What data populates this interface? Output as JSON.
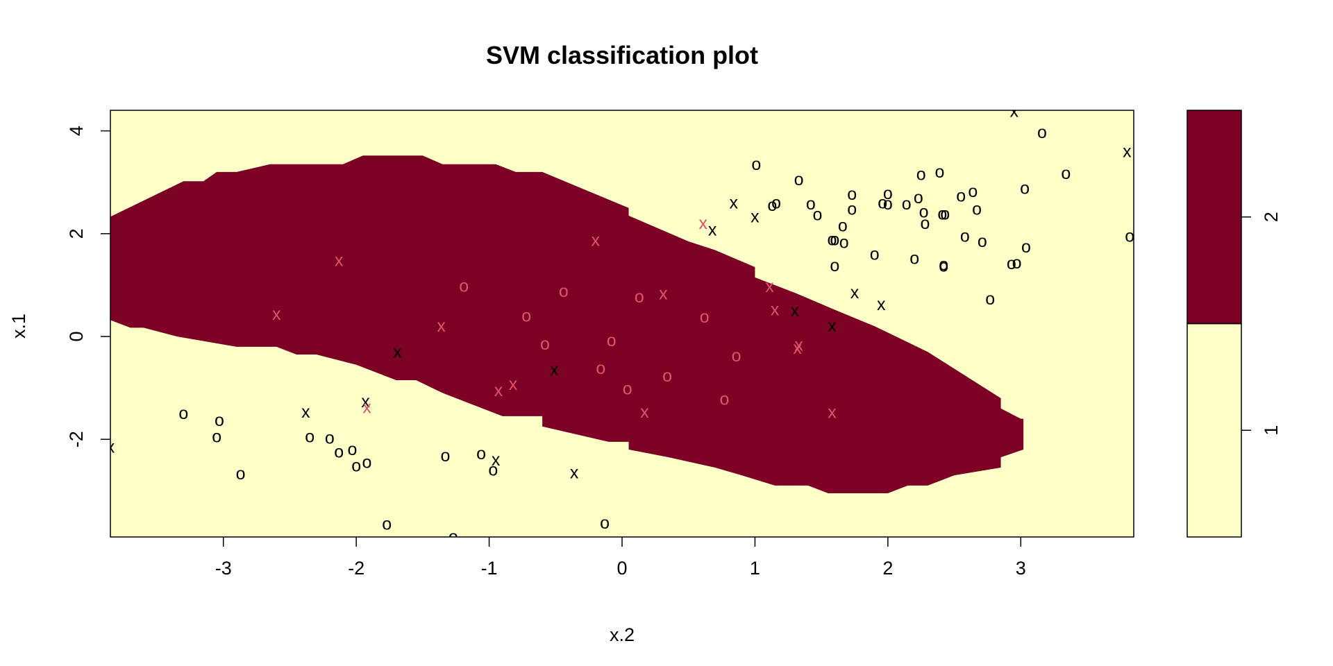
{
  "chart_data": {
    "type": "scatter",
    "title": "SVM classification plot",
    "xlabel": "x.2",
    "ylabel": "x.1",
    "xlim": [
      -3.85,
      3.85
    ],
    "ylim": [
      -3.9,
      4.4
    ],
    "xticks": [
      -3,
      -2,
      -1,
      0,
      1,
      2,
      3
    ],
    "xtick_labels": [
      "-3",
      "-2",
      "-1",
      "0",
      "1",
      "2",
      "3"
    ],
    "yticks": [
      -2,
      0,
      2,
      4
    ],
    "ytick_labels": [
      "-2",
      "0",
      "2",
      "4"
    ],
    "grid": false,
    "legend": {
      "placement": "right",
      "levels": [
        {
          "label": "1",
          "color": "#FFFFC8"
        },
        {
          "label": "2",
          "color": "#7D0025"
        }
      ]
    },
    "colors": {
      "class1_region": "#FFFFC8",
      "class2_region": "#7D0025",
      "class1_points": "#000000",
      "class2_points": "#DF536B"
    },
    "decision_region_class2": [
      [
        -3.85,
        2.33
      ],
      [
        -3.3,
        3.02
      ],
      [
        -3.15,
        3.02
      ],
      [
        -3.05,
        3.2
      ],
      [
        -2.9,
        3.2
      ],
      [
        -2.65,
        3.35
      ],
      [
        -2.1,
        3.35
      ],
      [
        -1.95,
        3.52
      ],
      [
        -1.5,
        3.52
      ],
      [
        -1.35,
        3.35
      ],
      [
        -0.95,
        3.35
      ],
      [
        -0.8,
        3.2
      ],
      [
        -0.6,
        3.2
      ],
      [
        0.05,
        2.5
      ],
      [
        0.05,
        2.35
      ],
      [
        0.5,
        1.85
      ],
      [
        0.7,
        1.68
      ],
      [
        1.0,
        1.35
      ],
      [
        1.0,
        1.15
      ],
      [
        1.3,
        0.85
      ],
      [
        1.6,
        0.52
      ],
      [
        1.9,
        0.2
      ],
      [
        2.3,
        -0.3
      ],
      [
        2.85,
        -1.2
      ],
      [
        2.85,
        -1.4
      ],
      [
        3.0,
        -1.6
      ],
      [
        3.02,
        -1.6
      ],
      [
        3.02,
        -2.2
      ],
      [
        2.85,
        -2.35
      ],
      [
        2.85,
        -2.55
      ],
      [
        2.5,
        -2.7
      ],
      [
        2.3,
        -2.9
      ],
      [
        2.15,
        -2.9
      ],
      [
        2.0,
        -3.05
      ],
      [
        1.55,
        -3.05
      ],
      [
        1.4,
        -2.9
      ],
      [
        1.15,
        -2.9
      ],
      [
        0.9,
        -2.7
      ],
      [
        0.7,
        -2.55
      ],
      [
        0.35,
        -2.35
      ],
      [
        0.05,
        -2.2
      ],
      [
        0.05,
        -2.05
      ],
      [
        -0.1,
        -2.05
      ],
      [
        -0.6,
        -1.75
      ],
      [
        -0.6,
        -1.55
      ],
      [
        -0.9,
        -1.55
      ],
      [
        -1.05,
        -1.4
      ],
      [
        -1.35,
        -1.1
      ],
      [
        -1.55,
        -0.85
      ],
      [
        -1.7,
        -0.85
      ],
      [
        -2.0,
        -0.55
      ],
      [
        -2.3,
        -0.35
      ],
      [
        -2.45,
        -0.35
      ],
      [
        -2.6,
        -0.2
      ],
      [
        -2.9,
        -0.2
      ],
      [
        -3.35,
        0.0
      ],
      [
        -3.6,
        0.17
      ],
      [
        -3.7,
        0.17
      ],
      [
        -3.85,
        0.32
      ]
    ],
    "series": [
      {
        "marker": "x",
        "color": "#000000",
        "points": [
          [
            -3.85,
            -2.15
          ],
          [
            -2.38,
            -1.47
          ],
          [
            -1.93,
            -1.27
          ],
          [
            -1.69,
            -0.3
          ],
          [
            -0.51,
            -0.65
          ],
          [
            -0.95,
            -2.4
          ],
          [
            -0.36,
            -2.65
          ],
          [
            0.68,
            2.07
          ],
          [
            0.84,
            2.6
          ],
          [
            1.0,
            2.33
          ],
          [
            1.3,
            0.5
          ],
          [
            1.58,
            0.2
          ],
          [
            1.75,
            0.85
          ],
          [
            1.95,
            0.62
          ],
          [
            2.95,
            4.38
          ],
          [
            3.8,
            3.6
          ]
        ]
      },
      {
        "marker": "o",
        "color": "#000000",
        "points": [
          [
            -3.3,
            -1.5
          ],
          [
            -3.05,
            -1.95
          ],
          [
            -3.03,
            -1.63
          ],
          [
            -2.87,
            -2.67
          ],
          [
            -2.35,
            -1.95
          ],
          [
            -2.2,
            -1.98
          ],
          [
            -2.13,
            -2.25
          ],
          [
            -2.03,
            -2.2
          ],
          [
            -2.0,
            -2.52
          ],
          [
            -1.92,
            -2.45
          ],
          [
            -1.77,
            -3.65
          ],
          [
            -1.33,
            -2.32
          ],
          [
            -1.27,
            -3.9
          ],
          [
            -1.06,
            -2.28
          ],
          [
            -0.97,
            -2.6
          ],
          [
            -0.13,
            -3.63
          ],
          [
            1.01,
            3.35
          ],
          [
            1.13,
            2.55
          ],
          [
            1.16,
            2.6
          ],
          [
            1.33,
            3.05
          ],
          [
            1.42,
            2.58
          ],
          [
            1.47,
            2.37
          ],
          [
            1.58,
            1.88
          ],
          [
            1.6,
            1.88
          ],
          [
            1.6,
            1.38
          ],
          [
            1.66,
            2.15
          ],
          [
            1.67,
            1.83
          ],
          [
            1.73,
            2.77
          ],
          [
            1.73,
            2.48
          ],
          [
            1.9,
            1.6
          ],
          [
            1.96,
            2.6
          ],
          [
            2.0,
            2.58
          ],
          [
            2.0,
            2.78
          ],
          [
            2.14,
            2.58
          ],
          [
            2.2,
            1.52
          ],
          [
            2.23,
            2.7
          ],
          [
            2.25,
            3.15
          ],
          [
            2.27,
            2.42
          ],
          [
            2.28,
            2.2
          ],
          [
            2.39,
            3.2
          ],
          [
            2.41,
            2.38
          ],
          [
            2.42,
            1.37
          ],
          [
            2.42,
            1.4
          ],
          [
            2.43,
            2.38
          ],
          [
            2.55,
            2.73
          ],
          [
            2.58,
            1.95
          ],
          [
            2.64,
            2.82
          ],
          [
            2.67,
            2.48
          ],
          [
            2.71,
            1.85
          ],
          [
            2.77,
            0.73
          ],
          [
            2.93,
            1.42
          ],
          [
            2.97,
            1.43
          ],
          [
            3.03,
            2.88
          ],
          [
            3.04,
            1.74
          ],
          [
            3.16,
            3.97
          ],
          [
            3.34,
            3.17
          ],
          [
            3.82,
            1.95
          ]
        ]
      },
      {
        "marker": "x",
        "color": "#DF536B",
        "points": [
          [
            -2.6,
            0.43
          ],
          [
            -2.13,
            1.48
          ],
          [
            -1.92,
            -1.38
          ],
          [
            -1.36,
            0.2
          ],
          [
            -0.93,
            -1.05
          ],
          [
            -0.82,
            -0.93
          ],
          [
            -0.2,
            1.87
          ],
          [
            0.17,
            -1.47
          ],
          [
            0.31,
            0.83
          ],
          [
            0.61,
            2.2
          ],
          [
            1.11,
            0.97
          ],
          [
            1.15,
            0.52
          ],
          [
            1.32,
            -0.23
          ],
          [
            1.33,
            -0.17
          ],
          [
            1.58,
            -1.48
          ]
        ]
      },
      {
        "marker": "o",
        "color": "#DF536B",
        "points": [
          [
            -1.19,
            0.98
          ],
          [
            -0.72,
            0.4
          ],
          [
            -0.58,
            -0.15
          ],
          [
            -0.44,
            0.88
          ],
          [
            -0.16,
            -0.62
          ],
          [
            -0.08,
            -0.08
          ],
          [
            0.04,
            -1.02
          ],
          [
            0.13,
            0.77
          ],
          [
            0.34,
            -0.77
          ],
          [
            0.62,
            0.38
          ],
          [
            0.77,
            -1.22
          ],
          [
            0.86,
            -0.38
          ]
        ]
      }
    ]
  }
}
